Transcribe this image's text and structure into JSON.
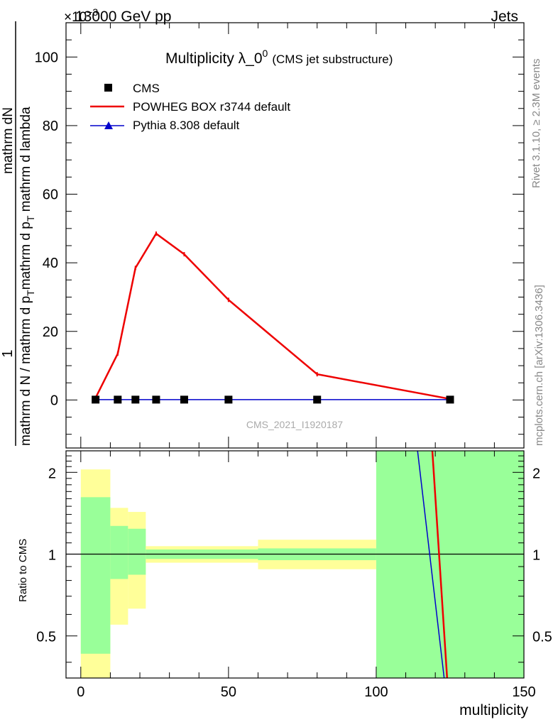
{
  "header": {
    "left_label": "13000 GeV pp",
    "right_label": "Jets",
    "exponent_label": "×10",
    "exponent_power": "−3"
  },
  "side_labels": {
    "rivet": "Rivet 3.1.10, ≥ 2.3M events",
    "mcplots": "mcplots.cern.ch [arXiv:1306.3436]"
  },
  "colors": {
    "cms": "#000000",
    "powheg": "#ee0000",
    "pythia": "#0000cc",
    "band_inner": "#99ff99",
    "band_outer": "#ffff99"
  },
  "chart_data": [
    {
      "type": "line",
      "title": "Multiplicity λ_0",
      "title_sup": "0",
      "subtitle": "(CMS jet substructure)",
      "watermark": "CMS_2021_I1920187",
      "ylabel": {
        "prefix": "1",
        "numerator": "mathrm dN",
        "fraction_a": "mathrm d N / mathrm d p",
        "fraction_a_sub": "T",
        "fraction_b": "mathrm d p",
        "fraction_b_sub": "T",
        "fraction_b_rest": "mathrm d lambda"
      },
      "xlim": [
        -5,
        150
      ],
      "ylim": [
        -14,
        110
      ],
      "yticks": [
        0,
        20,
        40,
        60,
        80,
        100
      ],
      "y_scale_note": "values ×10^-3",
      "legend_position": "top-left",
      "x": [
        5,
        12.5,
        18.5,
        25.5,
        35,
        50,
        80,
        125
      ],
      "series": [
        {
          "name": "CMS",
          "marker": "square",
          "values": [
            0.1,
            0.1,
            0.1,
            0.1,
            0.1,
            0.1,
            0.1,
            0.1
          ]
        },
        {
          "name": "POWHEG BOX r3744 default",
          "marker": "line",
          "values": [
            0.6,
            13.5,
            38.5,
            48.5,
            42.5,
            29.2,
            7.5,
            0.3
          ]
        },
        {
          "name": "Pythia 8.308 default",
          "marker": "triangle",
          "values": [
            0.1,
            0.1,
            0.1,
            0.1,
            0.1,
            0.1,
            0.1,
            0.1
          ]
        }
      ]
    },
    {
      "type": "area",
      "ylabel": "Ratio to CMS",
      "xlabel": "multiplicity",
      "xlim": [
        -5,
        150
      ],
      "ylim": [
        0.35,
        2.4
      ],
      "yticks": [
        0.5,
        1,
        2
      ],
      "xticks": [
        0,
        50,
        100,
        150
      ],
      "reference": 1,
      "bins": [
        {
          "x0": 0,
          "x1": 10,
          "inner": [
            0.43,
            1.62
          ],
          "outer": [
            0.2,
            2.05
          ]
        },
        {
          "x0": 10,
          "x1": 16,
          "inner": [
            0.81,
            1.27
          ],
          "outer": [
            0.55,
            1.48
          ]
        },
        {
          "x0": 16,
          "x1": 22,
          "inner": [
            0.84,
            1.24
          ],
          "outer": [
            0.63,
            1.43
          ]
        },
        {
          "x0": 22,
          "x1": 60,
          "inner": [
            0.96,
            1.04
          ],
          "outer": [
            0.93,
            1.07
          ]
        },
        {
          "x0": 60,
          "x1": 100,
          "inner": [
            0.95,
            1.05
          ],
          "outer": [
            0.88,
            1.13
          ]
        },
        {
          "x0": 100,
          "x1": 150,
          "inner": [
            0.2,
            2.6
          ],
          "outer": [
            0.2,
            2.6
          ]
        }
      ],
      "series": [
        {
          "name": "POWHEG BOX r3744 default",
          "segment": {
            "x": [
              119,
              124
            ],
            "y": [
              2.4,
              0.35
            ]
          }
        },
        {
          "name": "Pythia 8.308 default",
          "segment": {
            "x": [
              114,
              123
            ],
            "y": [
              2.4,
              0.35
            ]
          }
        }
      ]
    }
  ]
}
